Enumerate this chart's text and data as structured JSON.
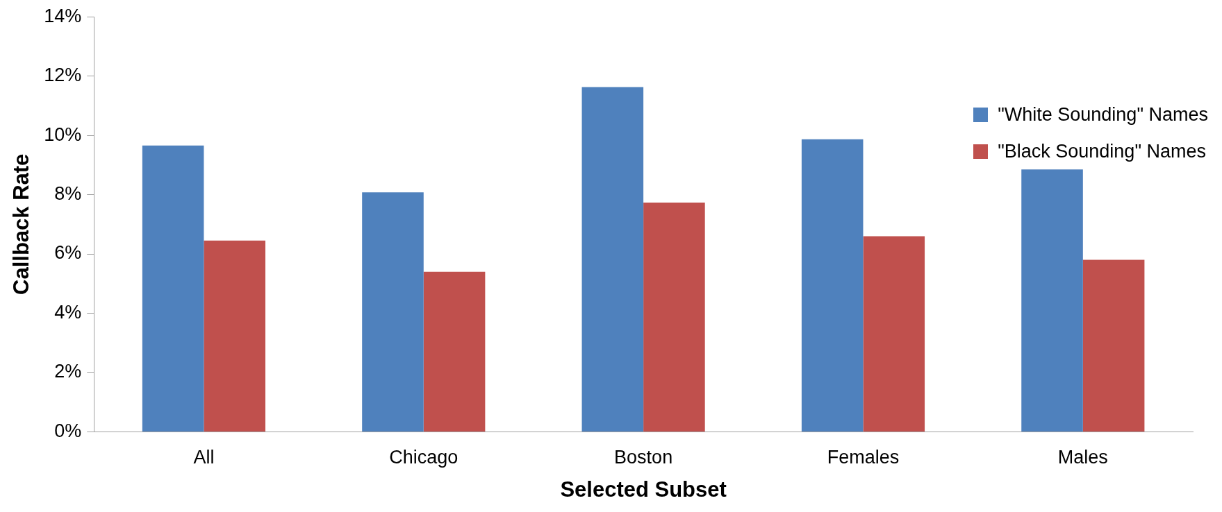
{
  "chart_data": {
    "type": "bar",
    "xlabel": "Selected Subset",
    "ylabel": "Callback Rate",
    "categories": [
      "All",
      "Chicago",
      "Boston",
      "Females",
      "Males"
    ],
    "series": [
      {
        "name": "\"White Sounding\" Names",
        "color": "#4f81bd",
        "values": [
          9.66,
          8.08,
          11.63,
          9.87,
          8.85
        ]
      },
      {
        "name": "\"Black Sounding\" Names",
        "color": "#c0504d",
        "values": [
          6.45,
          5.4,
          7.73,
          6.6,
          5.8
        ]
      }
    ],
    "ylim": [
      0,
      14
    ],
    "yticks": [
      {
        "value": 0,
        "label": "0%"
      },
      {
        "value": 2,
        "label": "2%"
      },
      {
        "value": 4,
        "label": "4%"
      },
      {
        "value": 6,
        "label": "6%"
      },
      {
        "value": 8,
        "label": "8%"
      },
      {
        "value": 10,
        "label": "10%"
      },
      {
        "value": 12,
        "label": "12%"
      },
      {
        "value": 14,
        "label": "14%"
      }
    ],
    "grid": false,
    "legend": "top right"
  }
}
